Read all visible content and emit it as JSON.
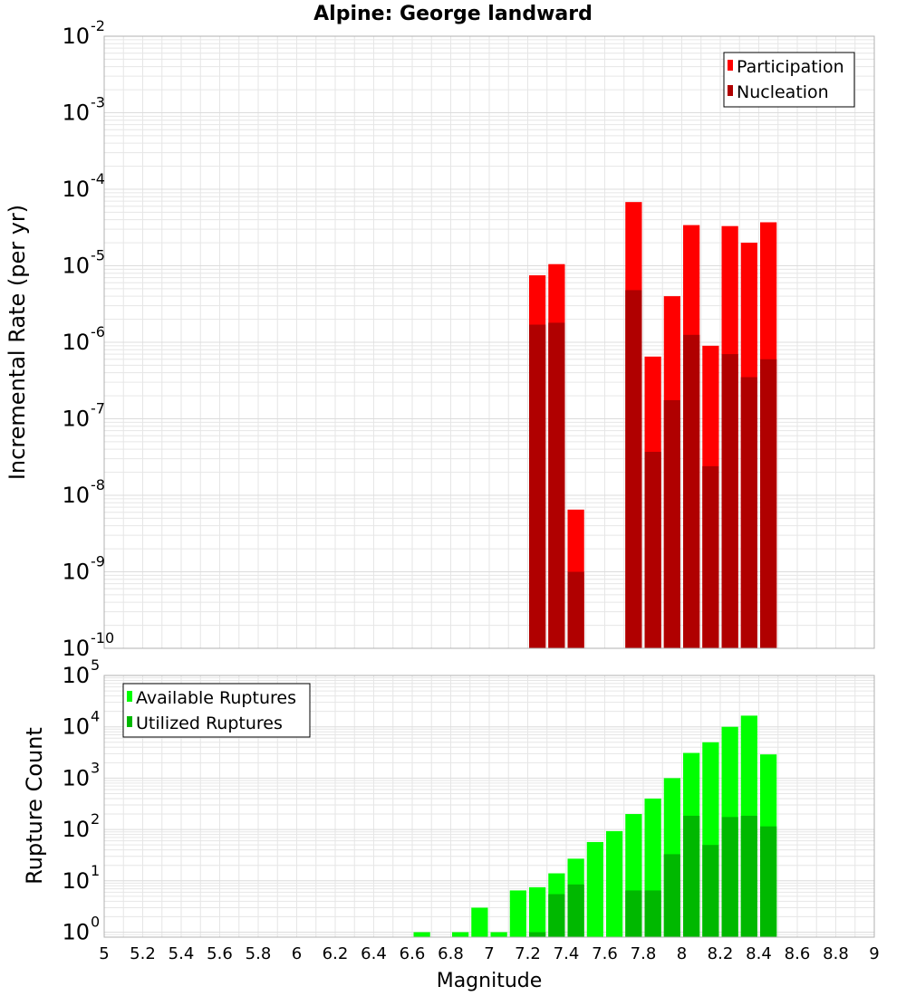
{
  "title": "Alpine: George landward",
  "colors": {
    "participation": "#ff0000",
    "nucleation": "#b00000",
    "available": "#00ff00",
    "utilized": "#00b800",
    "grid": "#e6e6e6",
    "frame": "#b0b0b0"
  },
  "chart_data": [
    {
      "type": "bar",
      "scale": "log",
      "ylabel": "Incremental Rate (per yr)",
      "xlim": [
        5,
        9
      ],
      "ylim": [
        1e-10,
        0.01
      ],
      "ytick_exponents": [
        -2,
        -3,
        -4,
        -5,
        -6,
        -7,
        -8,
        -9,
        -10
      ],
      "legend": [
        "Participation",
        "Nucleation"
      ],
      "legend_position": "top-right",
      "grid": true,
      "bin_width": 0.1,
      "x": [
        7.25,
        7.35,
        7.45,
        7.75,
        7.85,
        7.95,
        8.05,
        8.15,
        8.25,
        8.35,
        8.45
      ],
      "series": [
        {
          "name": "Participation",
          "values": [
            7.5e-06,
            1.05e-05,
            6.5e-09,
            6.8e-05,
            6.5e-07,
            4e-06,
            3.4e-05,
            9e-07,
            3.3e-05,
            2e-05,
            3.7e-05
          ]
        },
        {
          "name": "Nucleation",
          "values": [
            1.7e-06,
            1.8e-06,
            1e-09,
            4.8e-06,
            3.7e-08,
            1.75e-07,
            1.25e-06,
            2.4e-08,
            7e-07,
            3.5e-07,
            6e-07
          ]
        }
      ]
    },
    {
      "type": "bar",
      "scale": "log",
      "xlabel": "Magnitude",
      "ylabel": "Rupture Count",
      "xlim": [
        5,
        9
      ],
      "ylim": [
        0.8,
        100000
      ],
      "ytick_exponents": [
        5,
        4,
        3,
        2,
        1,
        0
      ],
      "xticks": [
        "5",
        "5.2",
        "5.4",
        "5.6",
        "5.8",
        "6",
        "6.2",
        "6.4",
        "6.6",
        "6.8",
        "7",
        "7.2",
        "7.4",
        "7.6",
        "7.8",
        "8",
        "8.2",
        "8.4",
        "8.6",
        "8.8",
        "9"
      ],
      "legend": [
        "Available Ruptures",
        "Utilized Ruptures"
      ],
      "legend_position": "top-left",
      "grid": true,
      "bin_width": 0.1,
      "x": [
        6.65,
        6.85,
        6.95,
        7.05,
        7.15,
        7.25,
        7.35,
        7.45,
        7.55,
        7.65,
        7.75,
        7.85,
        7.95,
        8.05,
        8.15,
        8.25,
        8.35,
        8.45
      ],
      "series": [
        {
          "name": "Available Ruptures",
          "values": [
            1,
            1,
            3,
            1,
            6.5,
            7.5,
            14,
            27,
            57,
            93,
            200,
            400,
            1000,
            3100,
            5000,
            10000,
            16500,
            2900
          ]
        },
        {
          "name": "Utilized Ruptures",
          "values": [
            0,
            0,
            0,
            0,
            0,
            1,
            5.5,
            8.5,
            0,
            0,
            6.5,
            6.5,
            33,
            185,
            50,
            175,
            185,
            115
          ]
        }
      ]
    }
  ]
}
